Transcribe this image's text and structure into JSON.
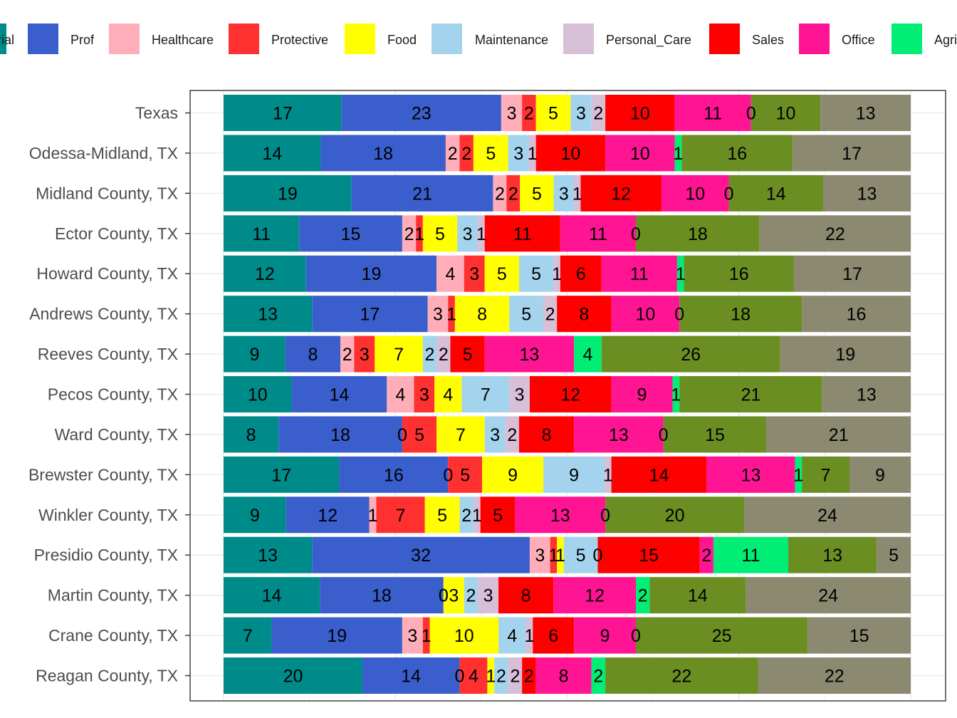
{
  "chart_data": {
    "type": "bar",
    "orientation": "horizontal",
    "stacked": "percent",
    "legend_position": "top",
    "grid": true,
    "legend_entries": [
      {
        "label": "Managerial",
        "shown": "rial",
        "color": "#008B8B"
      },
      {
        "label": "Prof",
        "color": "#3A5FCD"
      },
      {
        "label": "Healthcare",
        "color": "#FFAEB9"
      },
      {
        "label": "Protective",
        "color": "#FF3030"
      },
      {
        "label": "Food",
        "color": "#FFFF00"
      },
      {
        "label": "Maintenance",
        "color": "#A4D3EE"
      },
      {
        "label": "Personal_Care",
        "color": "#D8BFD8"
      },
      {
        "label": "Sales",
        "color": "#FF0000"
      },
      {
        "label": "Office",
        "color": "#FF1493"
      },
      {
        "label": "Agriculture",
        "shown": "Agri",
        "color": "#00EE76"
      }
    ],
    "categories": [
      "Texas",
      "Odessa-Midland, TX",
      "Midland County, TX",
      "Ector County, TX",
      "Howard County, TX",
      "Andrews County, TX",
      "Reeves County, TX",
      "Pecos County, TX",
      "Ward County, TX",
      "Brewster County, TX",
      "Winkler County, TX",
      "Presidio County, TX",
      "Martin County, TX",
      "Crane County, TX",
      "Reagan County, TX"
    ],
    "series": [
      {
        "name": "Managerial",
        "color": "#008B8B",
        "values": [
          17,
          14,
          19,
          11,
          12,
          13,
          9,
          10,
          8,
          17,
          9,
          13,
          14,
          7,
          20
        ]
      },
      {
        "name": "Prof",
        "color": "#3A5FCD",
        "values": [
          23,
          18,
          21,
          15,
          19,
          17,
          8,
          14,
          18,
          16,
          12,
          32,
          18,
          19,
          14
        ]
      },
      {
        "name": "Healthcare",
        "color": "#FFAEB9",
        "values": [
          3,
          2,
          2,
          2,
          4,
          3,
          2,
          4,
          0,
          0,
          1,
          3,
          0,
          3,
          0
        ]
      },
      {
        "name": "Protective",
        "color": "#FF3030",
        "values": [
          2,
          2,
          2,
          1,
          3,
          1,
          3,
          3,
          5,
          5,
          7,
          1,
          0,
          1,
          4
        ]
      },
      {
        "name": "Food",
        "color": "#FFFF00",
        "values": [
          5,
          5,
          5,
          5,
          5,
          8,
          7,
          4,
          7,
          9,
          5,
          1,
          3,
          10,
          1
        ]
      },
      {
        "name": "Maintenance",
        "color": "#A4D3EE",
        "values": [
          3,
          3,
          3,
          3,
          5,
          5,
          2,
          7,
          3,
          9,
          2,
          5,
          2,
          4,
          2
        ]
      },
      {
        "name": "Personal_Care",
        "color": "#D8BFD8",
        "values": [
          2,
          1,
          1,
          1,
          1,
          2,
          2,
          3,
          2,
          1,
          1,
          0,
          3,
          1,
          2
        ]
      },
      {
        "name": "Sales",
        "color": "#FF0000",
        "values": [
          10,
          10,
          12,
          11,
          6,
          8,
          5,
          12,
          8,
          14,
          5,
          15,
          8,
          6,
          2
        ]
      },
      {
        "name": "Office",
        "color": "#FF1493",
        "values": [
          11,
          10,
          10,
          11,
          11,
          10,
          13,
          9,
          13,
          13,
          13,
          2,
          12,
          9,
          8
        ]
      },
      {
        "name": "Agriculture",
        "color": "#00EE76",
        "values": [
          0,
          1,
          0,
          0,
          1,
          0,
          4,
          1,
          0,
          1,
          0,
          11,
          2,
          0,
          2
        ]
      },
      {
        "name": "",
        "color": "#6B8E23",
        "values": [
          10,
          16,
          14,
          18,
          16,
          18,
          26,
          21,
          15,
          7,
          20,
          13,
          14,
          25,
          22
        ]
      },
      {
        "name": "",
        "color": "#8B8970",
        "values": [
          13,
          17,
          13,
          22,
          17,
          16,
          19,
          13,
          21,
          9,
          24,
          5,
          24,
          15,
          22
        ]
      }
    ]
  }
}
